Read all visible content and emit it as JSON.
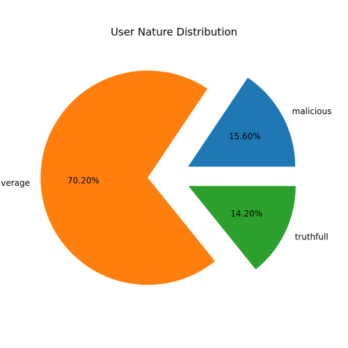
{
  "chart_data": {
    "type": "pie",
    "title": "User Nature Distribution",
    "slices": [
      {
        "label": "malicious",
        "value": 15.6,
        "display": "15.60%",
        "color": "#1f77b4",
        "exploded": true
      },
      {
        "label": "average",
        "value": 70.2,
        "display": "70.20%",
        "color": "#ff7f0e",
        "exploded": true
      },
      {
        "label": "truthfull",
        "value": 14.2,
        "display": "14.20%",
        "color": "#2ca02c",
        "exploded": true
      }
    ],
    "start_angle": 0,
    "direction": "counterclockwise"
  }
}
